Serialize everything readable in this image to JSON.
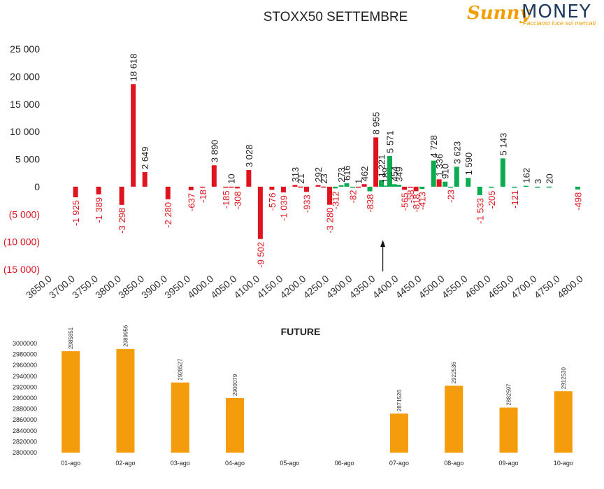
{
  "logo": {
    "brand_a": "Sunny",
    "brand_b": "MONEY",
    "tagline": "Facciamo luce sui mercati"
  },
  "chart_data": [
    {
      "type": "bar",
      "title": "STOXX50 SETTEMBRE",
      "xlabel": "",
      "ylabel": "",
      "ylim": [
        -15000,
        25000
      ],
      "y_ticks": [
        25000,
        20000,
        15000,
        10000,
        5000,
        0,
        -5000,
        -10000,
        -15000
      ],
      "y_tick_labels": [
        "25 000",
        "20 000",
        "15 000",
        "10 000",
        "5 000",
        "0",
        "(5 000)",
        "(10 000)",
        "(15 000)"
      ],
      "x_ticks": [
        "3650.0",
        "3700.0",
        "3750.0",
        "3800.0",
        "3850.0",
        "3900.0",
        "3950.0",
        "4000.0",
        "4050.0",
        "4100.0",
        "4150.0",
        "4200.0",
        "4250.0",
        "4300.0",
        "4350.0",
        "4400.0",
        "4450.0",
        "4500.0",
        "4550.0",
        "4600.0",
        "4650.0",
        "4700.0",
        "4750.0",
        "4800.0"
      ],
      "grid": false,
      "colors": {
        "negative": "#e0141e",
        "positive": "#e0141e",
        "positive_green": "#0bab4f",
        "negative_green": "#0bab4f",
        "label_negative": "#e0141e",
        "label_positive": "#222222"
      },
      "bars": [
        {
          "x": 3700,
          "v": -1925,
          "label": "-1 925",
          "c": "r"
        },
        {
          "x": 3750,
          "v": -1389,
          "label": "-1 389",
          "c": "r"
        },
        {
          "x": 3800,
          "v": -3298,
          "label": "-3 298",
          "c": "r"
        },
        {
          "x": 3825,
          "v": 18618,
          "label": "18 618",
          "c": "r"
        },
        {
          "x": 3850,
          "v": 2649,
          "label": "2 649",
          "c": "r"
        },
        {
          "x": 3900,
          "v": -2280,
          "label": "-2 280",
          "c": "r"
        },
        {
          "x": 3950,
          "v": -637,
          "label": "-637",
          "c": "r"
        },
        {
          "x": 3975,
          "v": -18,
          "label": "-18",
          "c": "r"
        },
        {
          "x": 4000,
          "v": 3890,
          "label": "3 890",
          "c": "r"
        },
        {
          "x": 4025,
          "v": -185,
          "label": "-185",
          "c": "r"
        },
        {
          "x": 4037,
          "v": 10,
          "label": "10",
          "c": "r"
        },
        {
          "x": 4050,
          "v": -308,
          "label": "-308",
          "c": "r"
        },
        {
          "x": 4075,
          "v": 3028,
          "label": "3 028",
          "c": "r"
        },
        {
          "x": 4100,
          "v": -9502,
          "label": "-9 502",
          "c": "r"
        },
        {
          "x": 4125,
          "v": -576,
          "label": "-576",
          "c": "r"
        },
        {
          "x": 4150,
          "v": -1039,
          "label": "-1 039",
          "c": "r"
        },
        {
          "x": 4175,
          "v": 313,
          "label": "313",
          "c": "r"
        },
        {
          "x": 4187,
          "v": 21,
          "label": "21",
          "c": "r"
        },
        {
          "x": 4200,
          "v": -933,
          "label": "-933",
          "c": "r"
        },
        {
          "x": 4225,
          "v": 292,
          "label": "292",
          "c": "r"
        },
        {
          "x": 4237,
          "v": 23,
          "label": "23",
          "c": "r"
        },
        {
          "x": 4250,
          "v": -3280,
          "label": "-3 280",
          "c": "r"
        },
        {
          "x": 4262,
          "v": -312,
          "label": "-312",
          "c": "g"
        },
        {
          "x": 4275,
          "v": 273,
          "label": "273",
          "c": "g"
        },
        {
          "x": 4287,
          "v": 616,
          "label": "616",
          "c": "g"
        },
        {
          "x": 4300,
          "v": -82,
          "label": "-82",
          "c": "g"
        },
        {
          "x": 4312,
          "v": 1,
          "label": "1",
          "c": "r"
        },
        {
          "x": 4325,
          "v": 462,
          "label": "462",
          "c": "r"
        },
        {
          "x": 4337,
          "v": -838,
          "label": "-838",
          "c": "g"
        },
        {
          "x": 4350,
          "v": 8955,
          "label": "8 955",
          "c": "r"
        },
        {
          "x": 4362,
          "v": 1221,
          "label": "1 221",
          "c": "g"
        },
        {
          "x": 4370,
          "v": 189,
          "label": "189",
          "c": "g"
        },
        {
          "x": 4380,
          "v": 5571,
          "label": "5 571",
          "c": "g"
        },
        {
          "x": 4390,
          "v": 454,
          "label": "454",
          "c": "g"
        },
        {
          "x": 4400,
          "v": 349,
          "label": "349",
          "c": "g"
        },
        {
          "x": 4412,
          "v": -565,
          "label": "-565",
          "c": "r"
        },
        {
          "x": 4425,
          "v": -58,
          "label": "-58",
          "c": "r"
        },
        {
          "x": 4437,
          "v": -818,
          "label": "-818",
          "c": "r"
        },
        {
          "x": 4450,
          "v": -413,
          "label": "-413",
          "c": "g"
        },
        {
          "x": 4475,
          "v": 4728,
          "label": "4 728",
          "c": "g"
        },
        {
          "x": 4487,
          "v": 1336,
          "label": "1 336",
          "c": "r"
        },
        {
          "x": 4500,
          "v": 910,
          "label": "910",
          "c": "g"
        },
        {
          "x": 4512,
          "v": -23,
          "label": "-23",
          "c": "g"
        },
        {
          "x": 4525,
          "v": 3623,
          "label": "3 623",
          "c": "g"
        },
        {
          "x": 4550,
          "v": 1590,
          "label": "1 590",
          "c": "g"
        },
        {
          "x": 4575,
          "v": -1533,
          "label": "-1 533",
          "c": "g"
        },
        {
          "x": 4600,
          "v": -205,
          "label": "-205",
          "c": "g"
        },
        {
          "x": 4625,
          "v": 5143,
          "label": "5 143",
          "c": "g"
        },
        {
          "x": 4650,
          "v": -121,
          "label": "-121",
          "c": "g"
        },
        {
          "x": 4675,
          "v": 162,
          "label": "162",
          "c": "g"
        },
        {
          "x": 4700,
          "v": 3,
          "label": "3",
          "c": "g"
        },
        {
          "x": 4725,
          "v": 20,
          "label": "20",
          "c": "g"
        },
        {
          "x": 4787,
          "v": -498,
          "label": "-498",
          "c": "g"
        }
      ],
      "annotation": {
        "type": "arrow",
        "x": 4350
      }
    },
    {
      "type": "bar",
      "title": "FUTURE",
      "xlabel": "",
      "ylabel": "",
      "ylim": [
        2800000,
        3000000
      ],
      "y_ticks": [
        3000000,
        2980000,
        2960000,
        2940000,
        2920000,
        2900000,
        2880000,
        2860000,
        2840000,
        2820000,
        2800000
      ],
      "categories": [
        "01-ago",
        "02-ago",
        "03-ago",
        "04-ago",
        "05-ago",
        "06-ago",
        "07-ago",
        "08-ago",
        "09-ago",
        "10-ago"
      ],
      "values": [
        2985851,
        2989956,
        2928527,
        2900079,
        null,
        null,
        2871526,
        2922536,
        2882597,
        2912530
      ],
      "value_labels": [
        "2985851",
        "2989956",
        "2928527",
        "2900079",
        "",
        "",
        "2871526",
        "2922536",
        "2882597",
        "2912530"
      ],
      "color": "#f59c0c",
      "grid": false
    }
  ]
}
